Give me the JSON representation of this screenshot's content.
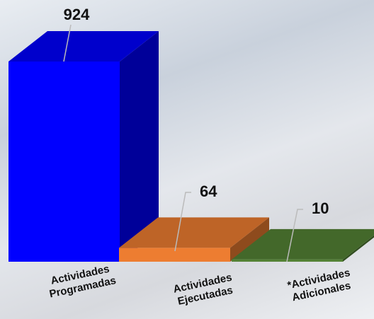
{
  "chart_data": {
    "type": "bar3d",
    "categories": [
      "Actividades Programadas",
      "Actividades Ejecutadas",
      "*Actividades Adicionales"
    ],
    "values": [
      924,
      64,
      10
    ],
    "colors": [
      "#0000ff",
      "#ed7d31",
      "#548235"
    ]
  }
}
